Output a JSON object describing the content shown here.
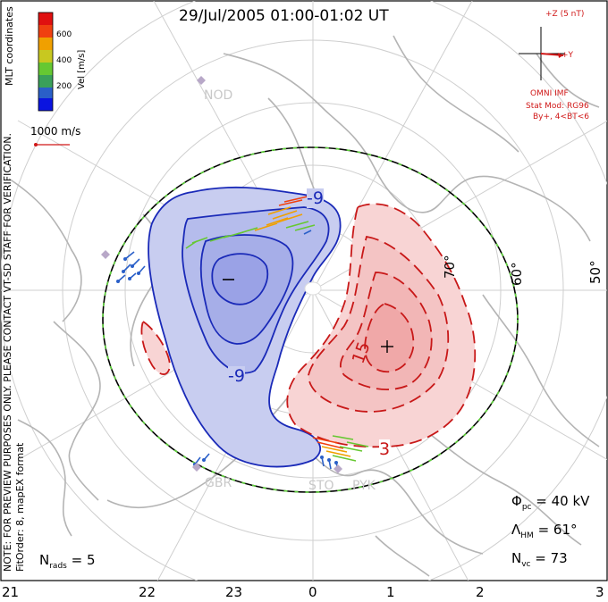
{
  "title": "29/Jul/2005 01:00-01:02 UT",
  "colorbar": {
    "label": "Vel [m/s]",
    "ticks": [
      "600",
      "400",
      "200"
    ],
    "colors": [
      "#0a14e0",
      "#2a5fc8",
      "#3aa05a",
      "#66c832",
      "#c8c820",
      "#f0a000",
      "#f04010",
      "#e01010"
    ]
  },
  "coord_label": "MLT coordinates",
  "scale_vector": {
    "label": "1000 m/s",
    "color": "#d01818"
  },
  "imf": {
    "z_label": "+Z (5 nT)",
    "y_label": "+Y",
    "source": "OMNI IMF",
    "model": "Stat Mod: RG96",
    "condition": "By+, 4<BT<6"
  },
  "note_line1": "NOTE: FOR PREVIEW PURPOSES ONLY. PLEASE CONTACT VT-SD STAFF FOR VERIFICATION.",
  "note_line2": "FitOrder: 8, mapEX format",
  "stations": [
    "NOD",
    "GBR",
    "STO",
    "PYK"
  ],
  "latitude_labels": [
    "50°",
    "60°",
    "70°"
  ],
  "contour_labels": {
    "neg1": "-9",
    "neg2": "-9",
    "pos1": "15",
    "pos2": "3"
  },
  "potential_extremes": {
    "min": "−",
    "max": "+"
  },
  "stats": {
    "phi_pc": {
      "sym": "Φ",
      "sub": "pc",
      "value": "= 40 kV"
    },
    "lambda_hm": {
      "sym": "Λ",
      "sub": "HM",
      "value": "= 61°"
    },
    "n_vc": {
      "sym": "N",
      "sub": "vc",
      "value": "= 73"
    },
    "n_rads": {
      "sym": "N",
      "sub": "rads",
      "value": "= 5"
    }
  },
  "mlt_ticks": [
    "21",
    "22",
    "23",
    "0",
    "1",
    "2",
    "3"
  ],
  "cell_colors": {
    "neg_fill": "#c8cdf0",
    "neg_core": "#9aa2e6",
    "neg_line": "#1a2ab8",
    "pos_fill": "#f8d4d4",
    "pos_core": "#f0a8a8",
    "pos_line": "#c81818"
  }
}
